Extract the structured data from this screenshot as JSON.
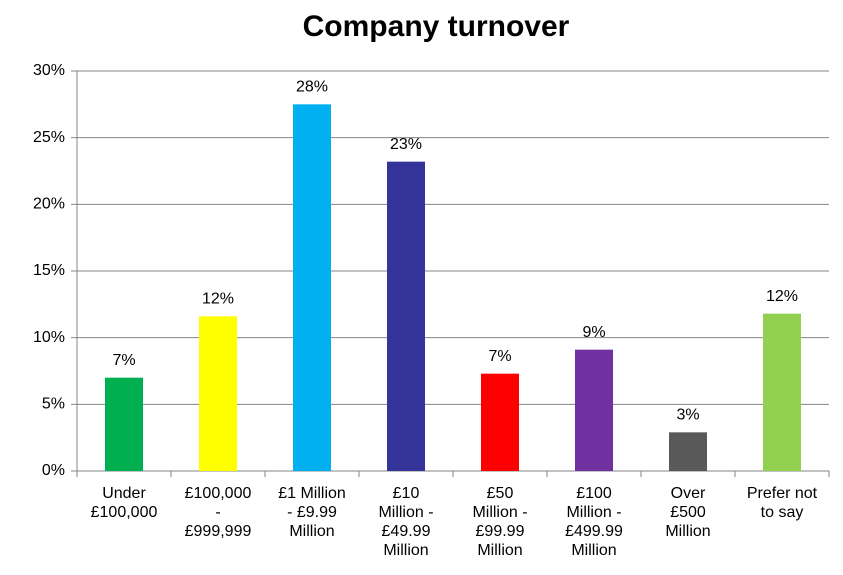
{
  "chart_data": {
    "type": "bar",
    "title": "Company turnover",
    "categories": [
      "Under\n£100,000",
      "£100,000\n-\n£999,999",
      "£1 Million\n- £9.99\nMillion",
      "£10\nMillion -\n£49.99\nMillion",
      "£50\nMillion -\n£99.99\nMillion",
      "£100\nMillion -\n£499.99\nMillion",
      "Over\n£500\nMillion",
      "Prefer not\nto say"
    ],
    "values": [
      7.0,
      11.6,
      27.5,
      23.2,
      7.3,
      9.1,
      2.9,
      11.8
    ],
    "value_labels": [
      "7%",
      "12%",
      "28%",
      "23%",
      "7%",
      "9%",
      "3%",
      "12%"
    ],
    "colors": [
      "#00b050",
      "#ffff00",
      "#00b0f0",
      "#333399",
      "#ff0000",
      "#7030a0",
      "#595959",
      "#92d050"
    ],
    "ylim": [
      0,
      30
    ],
    "yticks": [
      {
        "value": 0,
        "label": "0%"
      },
      {
        "value": 5,
        "label": "5%"
      },
      {
        "value": 10,
        "label": "10%"
      },
      {
        "value": 15,
        "label": "15%"
      },
      {
        "value": 20,
        "label": "20%"
      },
      {
        "value": 25,
        "label": "25%"
      },
      {
        "value": 30,
        "label": "30%"
      }
    ],
    "grid": true
  }
}
